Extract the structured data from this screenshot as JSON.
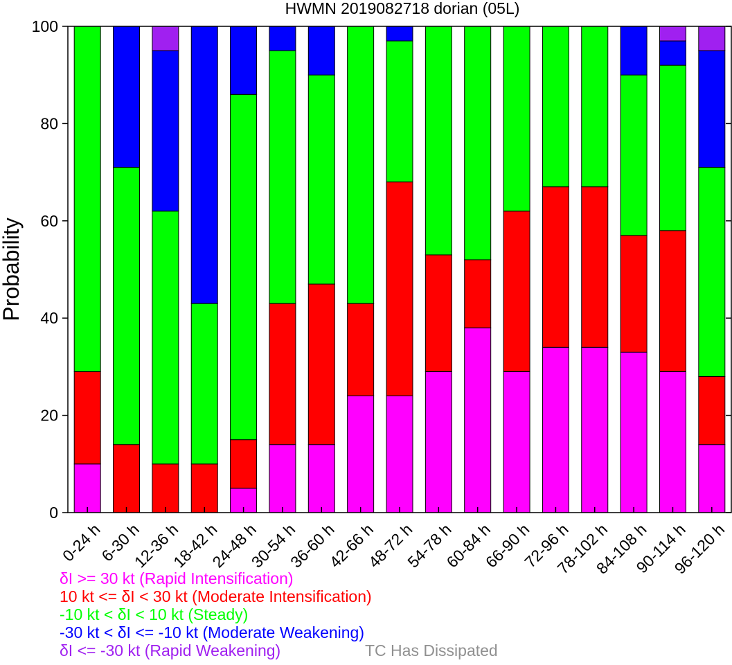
{
  "chart_data": {
    "type": "bar",
    "stacked": true,
    "title": "HWMN 2019082718 dorian (05L)",
    "ylabel": "Probability",
    "xlabel": "",
    "ylim": [
      0,
      100
    ],
    "yticks": [
      0,
      20,
      40,
      60,
      80,
      100
    ],
    "categories": [
      "0-24 h",
      "6-30 h",
      "12-36 h",
      "18-42 h",
      "24-48 h",
      "30-54 h",
      "36-60 h",
      "42-66 h",
      "48-72 h",
      "54-78 h",
      "60-84 h",
      "66-90 h",
      "72-96 h",
      "78-102 h",
      "84-108 h",
      "90-114 h",
      "96-120 h"
    ],
    "series": [
      {
        "name": "δI >= 30 kt (Rapid Intensification)",
        "color": "#ff00ff",
        "values": [
          10,
          0,
          0,
          0,
          5,
          14,
          14,
          24,
          24,
          29,
          38,
          29,
          34,
          34,
          33,
          29,
          14
        ]
      },
      {
        "name": "10 kt <= δI < 30 kt (Moderate Intensification)",
        "color": "#ff0000",
        "values": [
          19,
          14,
          10,
          10,
          10,
          29,
          33,
          19,
          44,
          24,
          14,
          33,
          33,
          33,
          24,
          29,
          14
        ]
      },
      {
        "name": "-10 kt < δI < 10 kt (Steady)",
        "color": "#00ff00",
        "values": [
          71,
          57,
          52,
          33,
          71,
          52,
          43,
          57,
          29,
          47,
          48,
          38,
          33,
          33,
          33,
          34,
          43
        ]
      },
      {
        "name": "-30 kt < δI <= -10 kt (Moderate Weakening)",
        "color": "#0000ff",
        "values": [
          0,
          29,
          33,
          57,
          14,
          5,
          10,
          0,
          3,
          0,
          0,
          0,
          0,
          0,
          10,
          5,
          24
        ]
      },
      {
        "name": "δI <= -30 kt (Rapid Weakening)",
        "color": "#a020f0",
        "values": [
          0,
          0,
          5,
          0,
          0,
          0,
          0,
          0,
          0,
          0,
          0,
          0,
          0,
          0,
          0,
          3,
          5
        ]
      },
      {
        "name": "TC Has Dissipated",
        "color": "#909090",
        "values": [
          0,
          0,
          0,
          0,
          0,
          0,
          0,
          0,
          0,
          0,
          0,
          0,
          0,
          0,
          0,
          0,
          0
        ]
      }
    ],
    "legend_position": "bottom-left",
    "grid": false
  }
}
